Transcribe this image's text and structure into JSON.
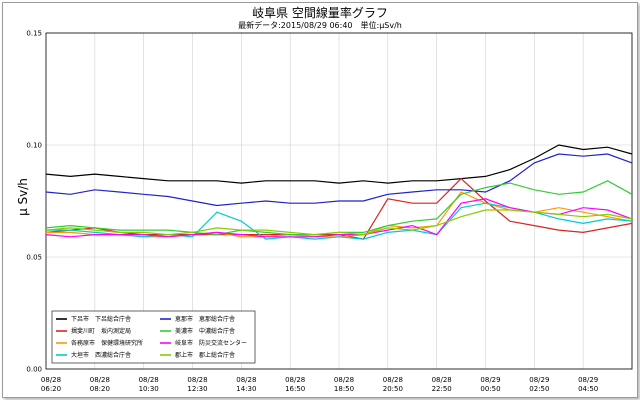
{
  "header": {
    "title": "岐阜県 空間線量率グラフ",
    "subtitle": "最新データ:2015/08/29 06:40　単位:μSv/h"
  },
  "chart_data": {
    "type": "line",
    "title": "岐阜県 空間線量率グラフ",
    "ylabel": "μ Sv/h",
    "ylim": [
      0,
      0.15
    ],
    "yticks": [
      "0.00",
      "0.05",
      "0.10",
      "0.15"
    ],
    "yticks_values": [
      0,
      0.05,
      0.1,
      0.15
    ],
    "xticks": [
      [
        "08/28",
        "06:20"
      ],
      [
        "08/28",
        "08:20"
      ],
      [
        "08/28",
        "10:30"
      ],
      [
        "08/28",
        "12:30"
      ],
      [
        "08/28",
        "14:30"
      ],
      [
        "08/28",
        "16:50"
      ],
      [
        "08/28",
        "18:50"
      ],
      [
        "08/28",
        "20:50"
      ],
      [
        "08/28",
        "22:50"
      ],
      [
        "08/29",
        "00:50"
      ],
      [
        "08/29",
        "02:50"
      ],
      [
        "08/29",
        "04:50"
      ]
    ],
    "grid": true,
    "legend_position": "bottom-left",
    "x_count": 25,
    "series": [
      {
        "name": "下呂市　下呂総合庁舎",
        "color": "#000000",
        "values": [
          0.087,
          0.086,
          0.087,
          0.086,
          0.085,
          0.084,
          0.084,
          0.084,
          0.083,
          0.084,
          0.084,
          0.084,
          0.083,
          0.084,
          0.083,
          0.084,
          0.084,
          0.085,
          0.086,
          0.089,
          0.094,
          0.1,
          0.098,
          0.099,
          0.096
        ]
      },
      {
        "name": "揖斐川町　坂内測定局",
        "color": "#dd2222",
        "values": [
          0.061,
          0.062,
          0.063,
          0.061,
          0.06,
          0.06,
          0.06,
          0.06,
          0.06,
          0.06,
          0.06,
          0.06,
          0.06,
          0.058,
          0.076,
          0.074,
          0.074,
          0.085,
          0.075,
          0.066,
          0.064,
          0.062,
          0.061,
          0.063,
          0.065
        ]
      },
      {
        "name": "各務原市　保健環境研究所",
        "color": "#ff9900",
        "values": [
          0.061,
          0.061,
          0.06,
          0.06,
          0.059,
          0.059,
          0.06,
          0.061,
          0.059,
          0.059,
          0.06,
          0.059,
          0.059,
          0.06,
          0.064,
          0.063,
          0.064,
          0.079,
          0.074,
          0.071,
          0.07,
          0.072,
          0.07,
          0.068,
          0.066
        ]
      },
      {
        "name": "大垣市　西濃総合庁舎",
        "color": "#00cccc",
        "values": [
          0.062,
          0.062,
          0.061,
          0.06,
          0.059,
          0.06,
          0.059,
          0.07,
          0.066,
          0.058,
          0.059,
          0.058,
          0.059,
          0.058,
          0.061,
          0.062,
          0.06,
          0.072,
          0.074,
          0.072,
          0.07,
          0.067,
          0.065,
          0.067,
          0.066
        ]
      },
      {
        "name": "恵那市　恵那総合庁舎",
        "color": "#2222cc",
        "values": [
          0.079,
          0.078,
          0.08,
          0.079,
          0.078,
          0.077,
          0.075,
          0.073,
          0.074,
          0.075,
          0.074,
          0.074,
          0.075,
          0.075,
          0.078,
          0.079,
          0.08,
          0.08,
          0.079,
          0.084,
          0.092,
          0.096,
          0.095,
          0.096,
          0.092
        ]
      },
      {
        "name": "美濃市　中濃総合庁舎",
        "color": "#33cc33",
        "values": [
          0.063,
          0.064,
          0.063,
          0.062,
          0.062,
          0.062,
          0.061,
          0.06,
          0.062,
          0.061,
          0.06,
          0.06,
          0.061,
          0.061,
          0.064,
          0.066,
          0.067,
          0.078,
          0.081,
          0.083,
          0.08,
          0.078,
          0.079,
          0.084,
          0.078
        ]
      },
      {
        "name": "岐阜市　防災交流センター",
        "color": "#ff00ff",
        "values": [
          0.06,
          0.059,
          0.06,
          0.06,
          0.06,
          0.059,
          0.06,
          0.061,
          0.06,
          0.059,
          0.059,
          0.059,
          0.06,
          0.06,
          0.062,
          0.064,
          0.06,
          0.074,
          0.076,
          0.072,
          0.07,
          0.069,
          0.072,
          0.071,
          0.067
        ]
      },
      {
        "name": "郡上市　郡上総合庁舎",
        "color": "#88cc00",
        "values": [
          0.062,
          0.063,
          0.062,
          0.061,
          0.061,
          0.06,
          0.061,
          0.063,
          0.062,
          0.062,
          0.061,
          0.06,
          0.061,
          0.06,
          0.063,
          0.062,
          0.064,
          0.068,
          0.071,
          0.071,
          0.07,
          0.069,
          0.068,
          0.069,
          0.067
        ]
      }
    ]
  }
}
